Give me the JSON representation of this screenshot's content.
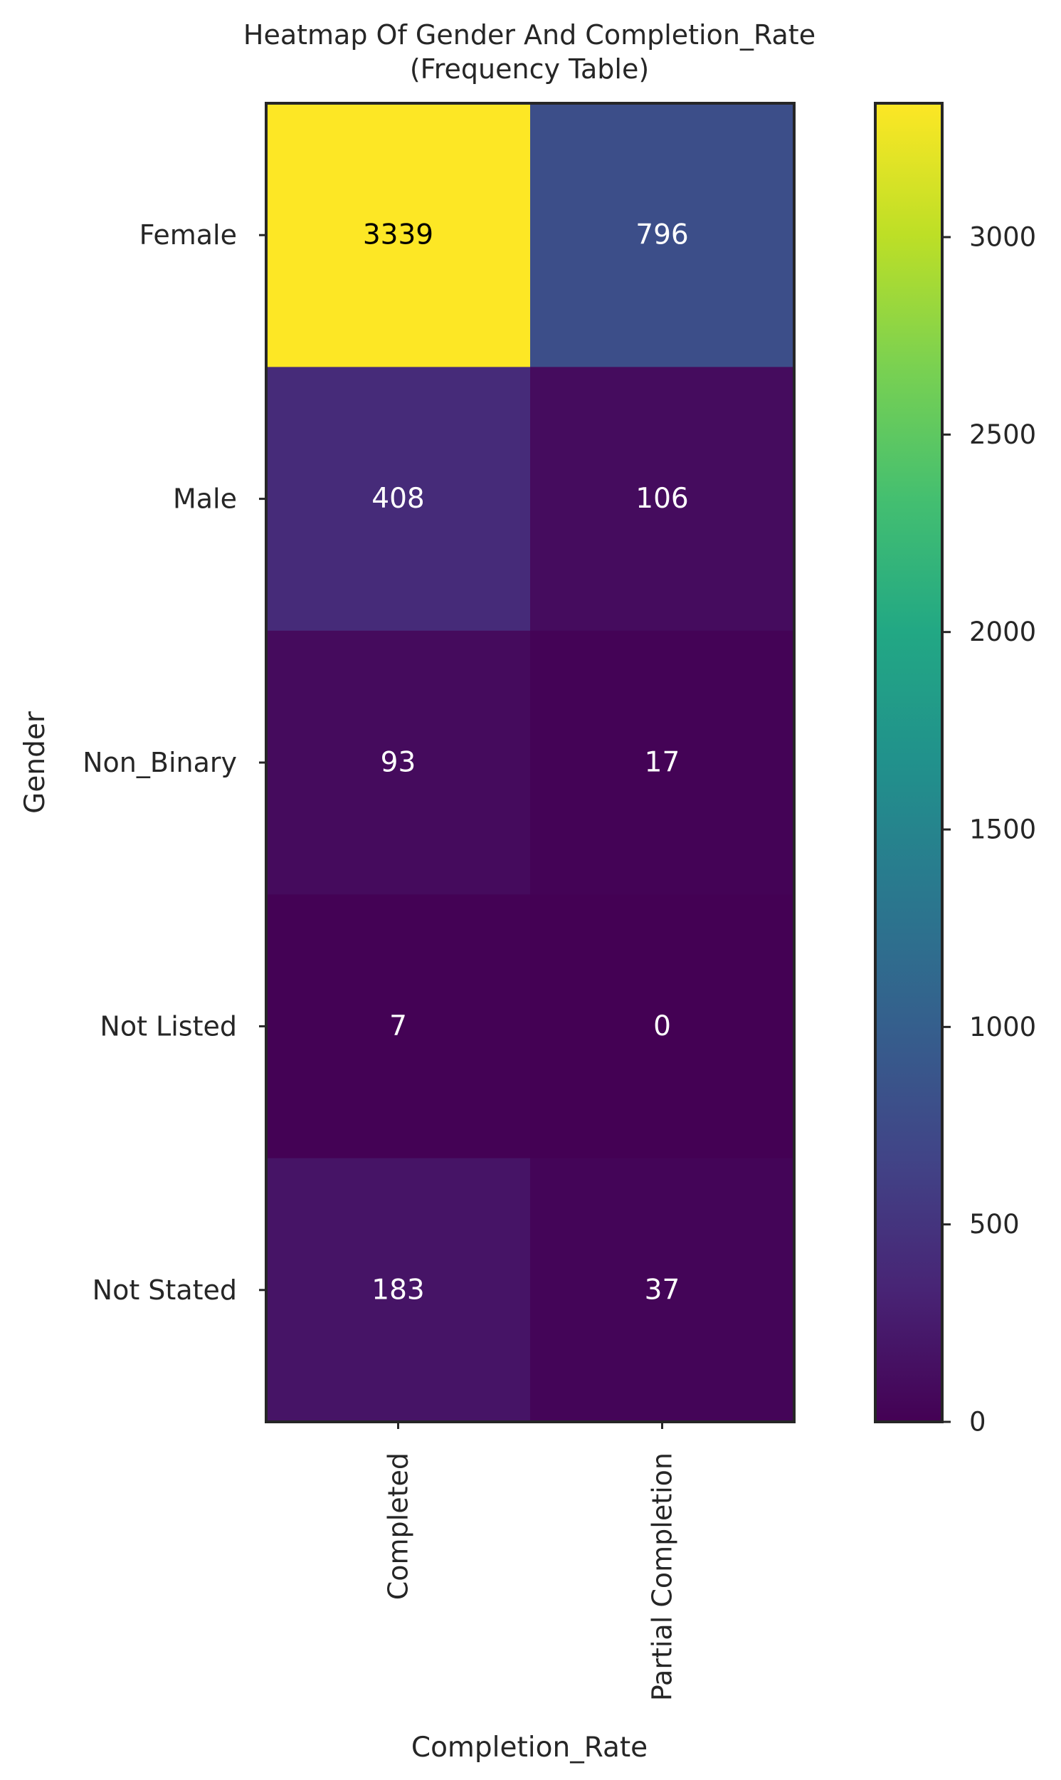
{
  "chart_data": {
    "type": "heatmap",
    "title": "Heatmap Of Gender And Completion_Rate",
    "subtitle": "(Frequency Table)",
    "xlabel": "Completion_Rate",
    "ylabel": "Gender",
    "x_categories": [
      "Completed",
      "Partial Completion"
    ],
    "y_categories": [
      "Female",
      "Male",
      "Non_Binary",
      "Not Listed",
      "Not Stated"
    ],
    "values": [
      [
        3339,
        796
      ],
      [
        408,
        106
      ],
      [
        93,
        17
      ],
      [
        7,
        0
      ],
      [
        183,
        37
      ]
    ],
    "colorscale": "viridis",
    "colorbar": {
      "range": [
        0,
        3339
      ],
      "ticks": [
        0,
        500,
        1000,
        1500,
        2000,
        2500,
        3000
      ]
    },
    "annotation_colors": {
      "dark_cell": "#ffffff",
      "light_cell": "#000000"
    }
  }
}
